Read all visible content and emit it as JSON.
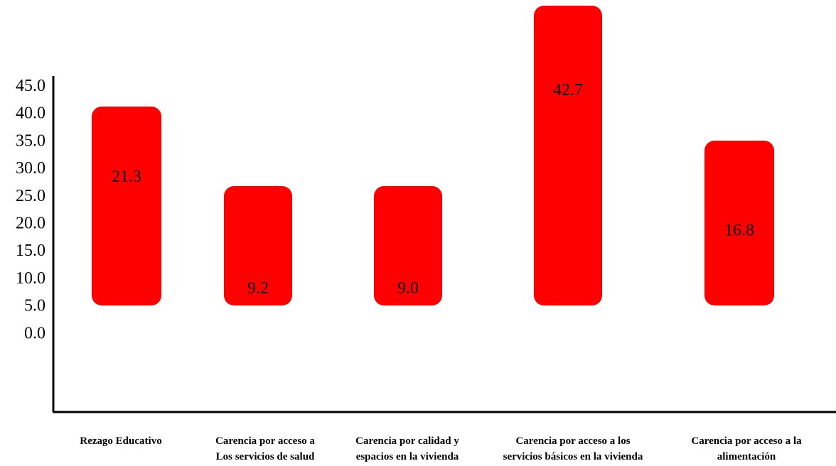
{
  "chart_data": {
    "type": "bar",
    "categories": [
      [
        "Rezago Educativo"
      ],
      [
        "Carencia por acceso a",
        "Los servicios de salud"
      ],
      [
        "Carencia por calidad y",
        "espacios en la vivienda"
      ],
      [
        "Carencia por acceso a los",
        "servicios básicos en la vivienda"
      ],
      [
        "Carencia por acceso a la",
        "alimentación"
      ]
    ],
    "values": [
      21.3,
      9.2,
      9.0,
      42.7,
      16.8
    ],
    "data_labels": [
      "21.3",
      "9.2",
      "9.0",
      "42.7",
      "16.8"
    ],
    "y_ticks": [
      "0.0",
      "5.0",
      "10.0",
      "15.0",
      "20.0",
      "25.0",
      "30.0",
      "35.0",
      "40.0",
      "45.0"
    ],
    "ylim": [
      0,
      45
    ],
    "bar_color": "#ff0000",
    "axis_color": "#000000",
    "grid": false,
    "legend": "none"
  }
}
